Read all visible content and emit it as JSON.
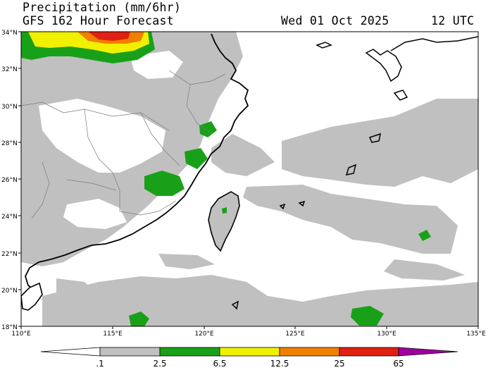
{
  "header": {
    "title": "Precipitation (mm/6hr)",
    "model_line": "GFS 162 Hour Forecast",
    "valid_date": "Wed 01 Oct 2025",
    "valid_hour": "12 UTC"
  },
  "map": {
    "lat_labels": [
      "34°N",
      "32°N",
      "30°N",
      "28°N",
      "26°N",
      "24°N",
      "22°N",
      "20°N",
      "18°N"
    ],
    "lon_labels": [
      "110°E",
      "115°E",
      "120°E",
      "125°E",
      "130°E",
      "135°E"
    ],
    "lat_range": [
      18,
      34
    ],
    "lon_range": [
      110,
      135
    ]
  },
  "colorbar": {
    "labels": [
      ".1",
      "2.5",
      "6.5",
      "12.5",
      "25",
      "65"
    ],
    "colors": [
      "#ffffff",
      "#c0c0c0",
      "#19a019",
      "#f0f000",
      "#f08000",
      "#e02010",
      "#a000a0"
    ]
  }
}
